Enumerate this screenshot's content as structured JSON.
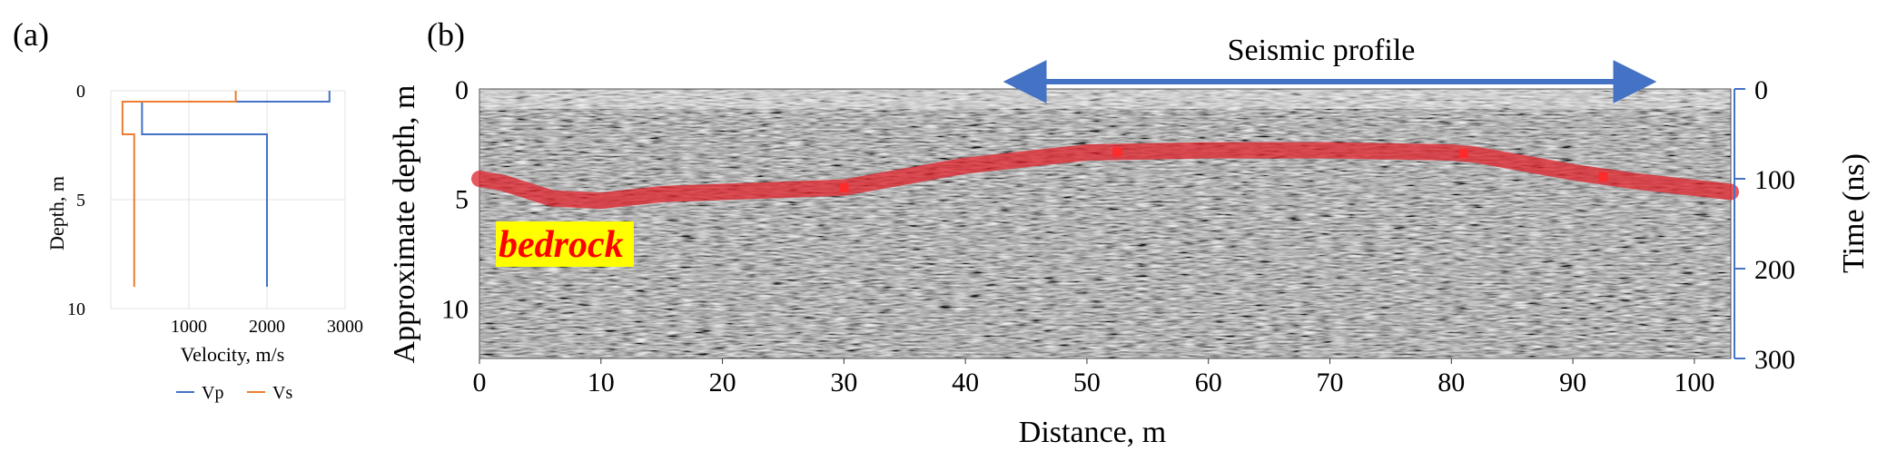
{
  "figure": {
    "panel_a_label": "(a)",
    "panel_b_label": "(b)"
  },
  "chart_data": [
    {
      "type": "line",
      "panel": "(a)",
      "xlabel": "Velocity, m/s",
      "ylabel": "Depth, m",
      "xlim": [
        0,
        3000
      ],
      "ylim": [
        10,
        0
      ],
      "y_inverted": true,
      "x_ticks": [
        "1000",
        "2000",
        "3000"
      ],
      "y_ticks": [
        "0",
        "5",
        "10"
      ],
      "grid": true,
      "legend_position": "bottom",
      "legend": [
        "Vp",
        "Vs"
      ],
      "series": [
        {
          "name": "Vp",
          "color": "#4472c4",
          "points": [
            [
              2800,
              0
            ],
            [
              2800,
              0.5
            ],
            [
              400,
              0.5
            ],
            [
              400,
              2
            ],
            [
              2000,
              2
            ],
            [
              2000,
              9
            ]
          ]
        },
        {
          "name": "Vs",
          "color": "#ed7d31",
          "points": [
            [
              1600,
              0
            ],
            [
              1600,
              0.5
            ],
            [
              300,
              0.5
            ],
            [
              300,
              0.5
            ],
            [
              150,
              0.5
            ],
            [
              150,
              2
            ],
            [
              300,
              2
            ],
            [
              300,
              9
            ]
          ]
        }
      ]
    },
    {
      "type": "line",
      "panel": "(b)",
      "title": "Seismic profile",
      "xlabel": "Distance, m",
      "ylabel": "Approximate depth, m",
      "y2label": "Time (ns)",
      "xlim": [
        0,
        103
      ],
      "ylim": [
        12.3,
        0
      ],
      "y2lim": [
        300,
        0
      ],
      "x_ticks": [
        "0",
        "10",
        "20",
        "30",
        "40",
        "50",
        "60",
        "70",
        "80",
        "90",
        "100"
      ],
      "y_ticks": [
        "0",
        "5",
        "10"
      ],
      "y2_ticks": [
        "0",
        "100",
        "200",
        "300"
      ],
      "background": "GPR radargram (grayscale wiggle traces)",
      "arrow_range_x": [
        44,
        96
      ],
      "annotation": "bedrock",
      "series": [
        {
          "name": "",
          "color": "#e0202a",
          "x": [
            0,
            2,
            6,
            10,
            15,
            20,
            30,
            40,
            50,
            60,
            70,
            80,
            82,
            90,
            95,
            103
          ],
          "y": [
            4.1,
            4.3,
            5.0,
            5.1,
            4.8,
            4.7,
            4.5,
            3.5,
            2.9,
            2.8,
            2.8,
            2.9,
            3.0,
            3.8,
            4.2,
            4.7
          ]
        }
      ],
      "markers_x": [
        30,
        52.5,
        81,
        92.5
      ]
    }
  ]
}
